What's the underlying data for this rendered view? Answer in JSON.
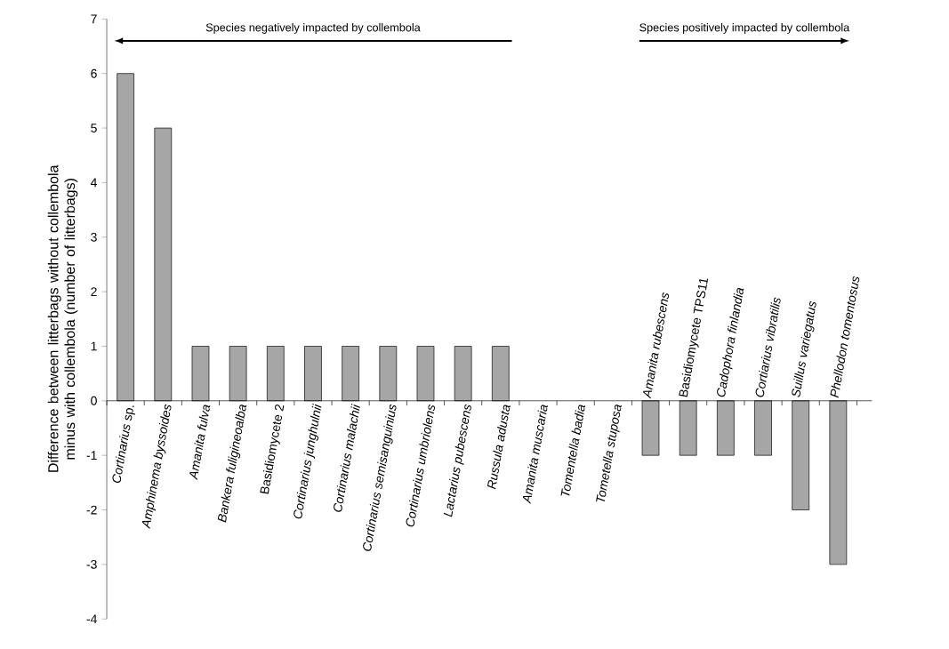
{
  "chart_data": {
    "type": "bar",
    "ylabel": "Difference between litterbags without collembola minus with collembola (number of litterbags)",
    "categories": [
      "*Cortinarius* sp.",
      "*Amphinema byssoides*",
      "*Amanita fulva*",
      "*Bankera fuligineoalba*",
      "Basidiomycete 2",
      "*Cortinarius junghulnii*",
      "*Cortinarius malachii*",
      "*Cortinarius semisanguinius*",
      "*Cortinarius umbriolens*",
      "*Lactarius pubescens*",
      "*Russula adusta*",
      "*Amanita muscaria*",
      "*Tomentella badia*",
      "*Tometella stuposa*",
      "*Amanita rubescens*",
      "Basidiomycete TPS11",
      "*Cadophora finlandia*",
      "*Cortiarius vibratilis*",
      "*Suillus variegatus*",
      "*Phellodon tomentosus*"
    ],
    "values": [
      6,
      5,
      1,
      1,
      1,
      1,
      1,
      1,
      1,
      1,
      1,
      0,
      0,
      0,
      -1,
      -1,
      -1,
      -1,
      -2,
      -3
    ],
    "color": "#a6a6a6",
    "ylim": [
      -4,
      7
    ],
    "yticks": [
      -4,
      -3,
      -2,
      -1,
      0,
      1,
      2,
      3,
      4,
      5,
      6,
      7
    ],
    "annotations": [
      "Species negatively impacted by collembola",
      "Species positively impacted by collembola"
    ]
  }
}
